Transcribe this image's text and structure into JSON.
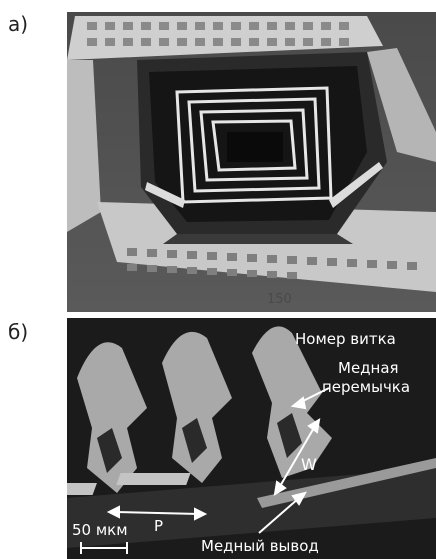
{
  "figure": {
    "panel_a": {
      "label": "а)",
      "stamp": "150"
    },
    "panel_b": {
      "label": "б)",
      "annotations": {
        "turn_number": "Номер витка",
        "copper_bridge_line1": "Медная",
        "copper_bridge_line2": "перемычка",
        "width_symbol": "W",
        "pitch_symbol": "P",
        "scale_bar": "50 мкм",
        "copper_lead": "Медный вывод"
      }
    }
  }
}
